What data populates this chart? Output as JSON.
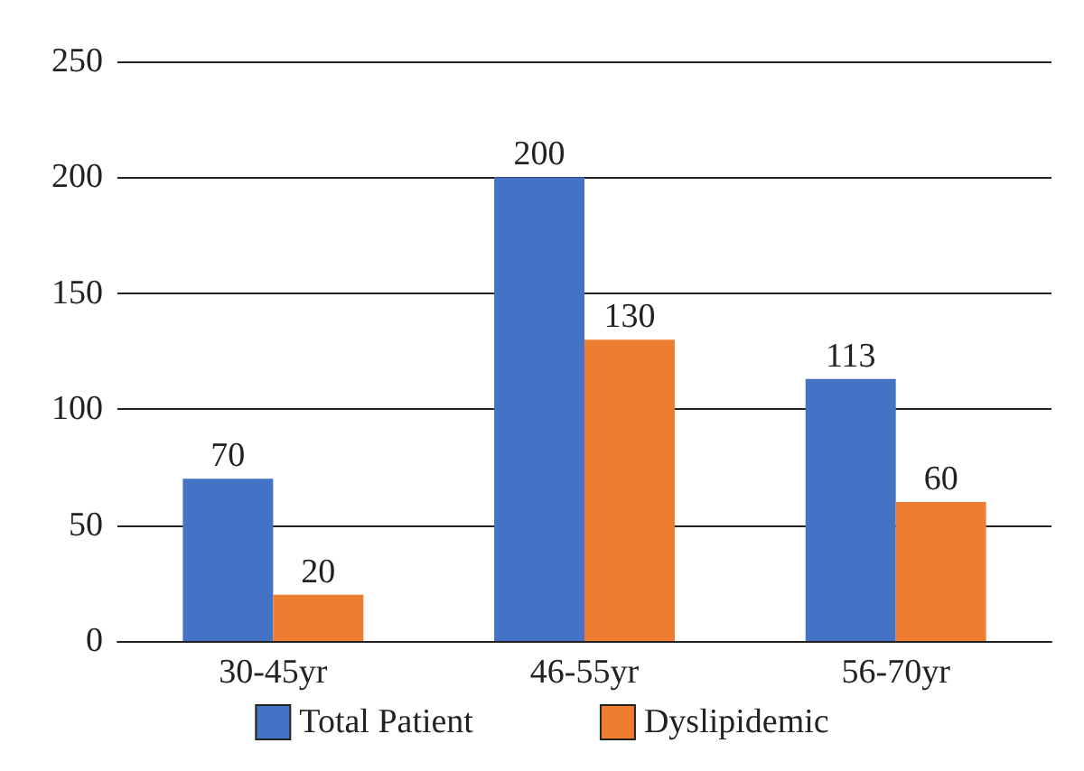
{
  "chart_data": {
    "type": "bar",
    "categories": [
      "30-45yr",
      "46-55yr",
      "56-70yr"
    ],
    "series": [
      {
        "name": "Total Patient",
        "color": "#4472c4",
        "values": [
          70,
          200,
          113
        ]
      },
      {
        "name": "Dyslipidemic",
        "color": "#ed7d31",
        "values": [
          20,
          130,
          60
        ]
      }
    ],
    "ylim": [
      0,
      250
    ],
    "yticks": [
      0,
      50,
      100,
      150,
      200,
      250
    ],
    "grid": "y",
    "legend": "bottom",
    "data_labels": true
  }
}
